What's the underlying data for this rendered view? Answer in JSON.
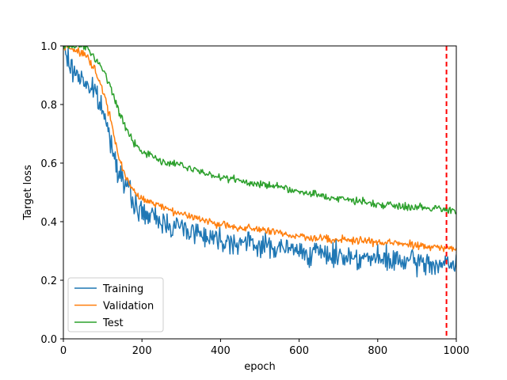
{
  "chart_data": {
    "type": "line",
    "title": "",
    "xlabel": "epoch",
    "ylabel": "Target loss",
    "xlim": [
      0,
      1000
    ],
    "ylim": [
      0.0,
      1.0
    ],
    "x_ticks": [
      0,
      200,
      400,
      600,
      800,
      1000
    ],
    "x_tick_labels": [
      "0",
      "200",
      "400",
      "600",
      "800",
      "1000"
    ],
    "y_ticks": [
      0.0,
      0.2,
      0.4,
      0.6,
      0.8,
      1.0
    ],
    "y_tick_labels": [
      "0.0",
      "0.2",
      "0.4",
      "0.6",
      "0.8",
      "1.0"
    ],
    "grid": false,
    "legend_position": "lower-left",
    "series": [
      {
        "name": "Training",
        "color": "#1f77b4",
        "points": [
          [
            0,
            1.0
          ],
          [
            20,
            0.92
          ],
          [
            40,
            0.9
          ],
          [
            60,
            0.87
          ],
          [
            80,
            0.84
          ],
          [
            100,
            0.78
          ],
          [
            120,
            0.68
          ],
          [
            140,
            0.58
          ],
          [
            160,
            0.52
          ],
          [
            180,
            0.46
          ],
          [
            200,
            0.43
          ],
          [
            250,
            0.4
          ],
          [
            300,
            0.38
          ],
          [
            350,
            0.36
          ],
          [
            400,
            0.34
          ],
          [
            450,
            0.33
          ],
          [
            500,
            0.32
          ],
          [
            550,
            0.31
          ],
          [
            600,
            0.3
          ],
          [
            650,
            0.29
          ],
          [
            700,
            0.285
          ],
          [
            750,
            0.28
          ],
          [
            800,
            0.27
          ],
          [
            850,
            0.265
          ],
          [
            900,
            0.26
          ],
          [
            950,
            0.255
          ],
          [
            1000,
            0.25
          ]
        ],
        "noise": 0.06
      },
      {
        "name": "Validation",
        "color": "#ff7f0e",
        "points": [
          [
            0,
            1.0
          ],
          [
            40,
            0.98
          ],
          [
            60,
            0.96
          ],
          [
            80,
            0.92
          ],
          [
            100,
            0.85
          ],
          [
            120,
            0.75
          ],
          [
            140,
            0.62
          ],
          [
            160,
            0.55
          ],
          [
            180,
            0.5
          ],
          [
            200,
            0.48
          ],
          [
            250,
            0.45
          ],
          [
            300,
            0.43
          ],
          [
            350,
            0.41
          ],
          [
            400,
            0.39
          ],
          [
            450,
            0.38
          ],
          [
            500,
            0.37
          ],
          [
            550,
            0.36
          ],
          [
            600,
            0.35
          ],
          [
            650,
            0.345
          ],
          [
            700,
            0.34
          ],
          [
            750,
            0.335
          ],
          [
            800,
            0.33
          ],
          [
            850,
            0.325
          ],
          [
            900,
            0.32
          ],
          [
            950,
            0.31
          ],
          [
            1000,
            0.31
          ]
        ],
        "noise": 0.02
      },
      {
        "name": "Test",
        "color": "#2ca02c",
        "points": [
          [
            0,
            1.0
          ],
          [
            60,
            1.0
          ],
          [
            80,
            0.96
          ],
          [
            100,
            0.92
          ],
          [
            120,
            0.86
          ],
          [
            140,
            0.78
          ],
          [
            160,
            0.72
          ],
          [
            180,
            0.67
          ],
          [
            200,
            0.64
          ],
          [
            250,
            0.61
          ],
          [
            300,
            0.59
          ],
          [
            350,
            0.57
          ],
          [
            400,
            0.55
          ],
          [
            450,
            0.54
          ],
          [
            500,
            0.53
          ],
          [
            550,
            0.52
          ],
          [
            600,
            0.5
          ],
          [
            650,
            0.49
          ],
          [
            700,
            0.48
          ],
          [
            750,
            0.47
          ],
          [
            800,
            0.46
          ],
          [
            850,
            0.455
          ],
          [
            900,
            0.45
          ],
          [
            950,
            0.445
          ],
          [
            1000,
            0.44
          ]
        ],
        "noise": 0.02
      }
    ],
    "vline": {
      "x": 975,
      "color": "#ff0000",
      "style": "dashed"
    }
  }
}
